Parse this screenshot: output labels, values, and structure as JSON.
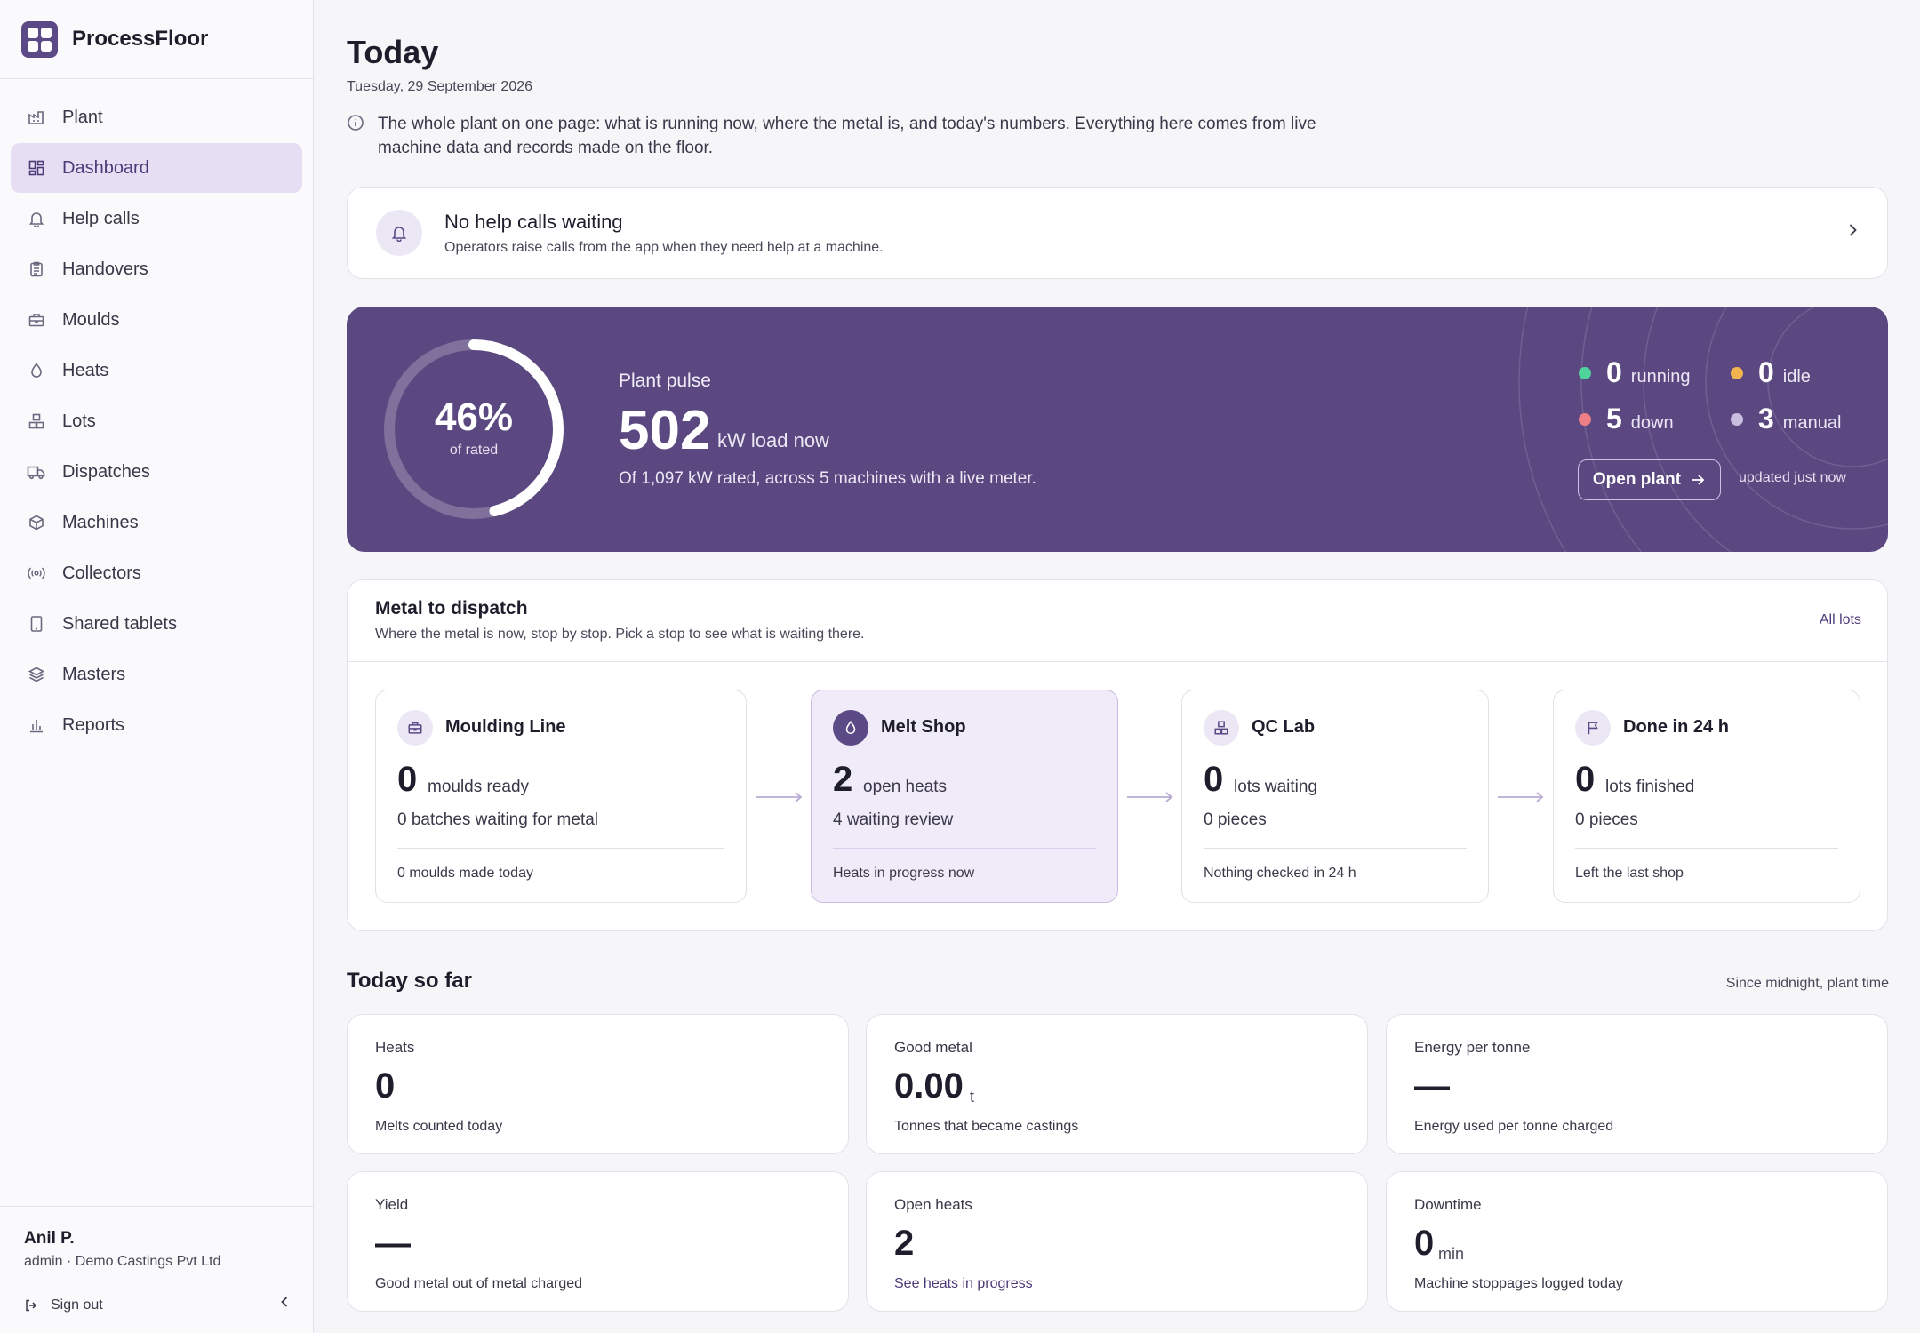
{
  "app": {
    "name": "ProcessFloor"
  },
  "sidebar": {
    "items": [
      {
        "label": "Plant",
        "icon": "factory-icon"
      },
      {
        "label": "Dashboard",
        "icon": "dashboard-icon",
        "active": true
      },
      {
        "label": "Help calls",
        "icon": "bell-icon"
      },
      {
        "label": "Handovers",
        "icon": "clipboard-icon"
      },
      {
        "label": "Moulds",
        "icon": "mould-icon"
      },
      {
        "label": "Heats",
        "icon": "flame-drop-icon"
      },
      {
        "label": "Lots",
        "icon": "lots-icon"
      },
      {
        "label": "Dispatches",
        "icon": "truck-icon"
      },
      {
        "label": "Machines",
        "icon": "cube-icon"
      },
      {
        "label": "Collectors",
        "icon": "broadcast-icon"
      },
      {
        "label": "Shared tablets",
        "icon": "tablet-icon"
      },
      {
        "label": "Masters",
        "icon": "layers-icon"
      },
      {
        "label": "Reports",
        "icon": "bar-chart-icon"
      }
    ],
    "user": {
      "name": "Anil P.",
      "role": "admin · Demo Castings Pvt Ltd"
    },
    "signout_label": "Sign out"
  },
  "header": {
    "title": "Today",
    "date": "Tuesday, 29 September 2026",
    "intro": "The whole plant on one page: what is running now, where the metal is, and today's numbers. Everything here comes from live machine data and records made on the floor."
  },
  "help_calls": {
    "title": "No help calls waiting",
    "subtitle": "Operators raise calls from the app when they need help at a machine."
  },
  "pulse": {
    "gauge_value": "46%",
    "gauge_fraction": 0.46,
    "gauge_label": "of rated",
    "label": "Plant pulse",
    "value": "502",
    "unit": "kW load now",
    "subtitle": "Of 1,097 kW rated, across 5 machines with a live meter.",
    "stats": [
      {
        "num": "0",
        "label": "running",
        "color": "#4fd39a"
      },
      {
        "num": "0",
        "label": "idle",
        "color": "#f2b450"
      },
      {
        "num": "5",
        "label": "down",
        "color": "#ef7f86"
      },
      {
        "num": "3",
        "label": "manual",
        "color": "#c9bde0"
      }
    ],
    "open_plant_label": "Open plant",
    "updated": "updated just now"
  },
  "dispatch": {
    "title": "Metal to dispatch",
    "subtitle": "Where the metal is now, stop by stop. Pick a stop to see what is waiting there.",
    "all_lots_label": "All lots",
    "stops": [
      {
        "name": "Moulding Line",
        "icon": "mould-icon",
        "num": "0",
        "num_label": "moulds ready",
        "detail": "0 batches waiting for metal",
        "foot": "0 moulds made today"
      },
      {
        "name": "Melt Shop",
        "icon": "flame-drop-icon",
        "num": "2",
        "num_label": "open heats",
        "detail": "4 waiting review",
        "foot": "Heats in progress now",
        "active": true
      },
      {
        "name": "QC Lab",
        "icon": "lots-icon",
        "num": "0",
        "num_label": "lots waiting",
        "detail": "0 pieces",
        "foot": "Nothing checked in 24 h"
      },
      {
        "name": "Done in 24 h",
        "icon": "flag-icon",
        "num": "0",
        "num_label": "lots finished",
        "detail": "0 pieces",
        "foot": "Left the last shop"
      }
    ]
  },
  "today": {
    "title": "Today so far",
    "note": "Since midnight, plant time",
    "kpis": [
      {
        "label": "Heats",
        "value": "0",
        "unit": "",
        "note": "Melts counted today"
      },
      {
        "label": "Good metal",
        "value": "0.00",
        "unit": "t",
        "note": "Tonnes that became castings"
      },
      {
        "label": "Energy per tonne",
        "value": "—",
        "unit": "",
        "note": "Energy used per tonne charged"
      },
      {
        "label": "Yield",
        "value": "—",
        "unit": "",
        "note": "Good metal out of metal charged"
      },
      {
        "label": "Open heats",
        "value": "2",
        "unit": "",
        "note": "See heats in progress"
      },
      {
        "label": "Downtime",
        "value": "0",
        "unit": "min",
        "note": "Machine stoppages logged today"
      }
    ]
  }
}
